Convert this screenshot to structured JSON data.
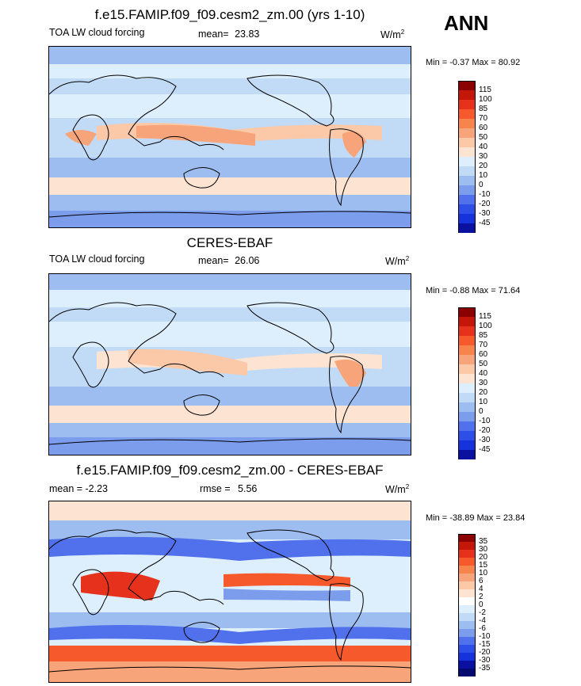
{
  "season": "ANN",
  "panels": [
    {
      "title": "f.e15.FAMIP.f09_f09.cesm2_zm.00 (yrs 1-10)",
      "left_label": "TOA LW cloud forcing",
      "stat_label": "mean=",
      "stat_value": "23.83",
      "units": "W/m",
      "units_sup": "2",
      "minmax": "Min =  -0.37 Max =  80.92",
      "colorbar": {
        "labels": [
          "115",
          "100",
          "85",
          "70",
          "60",
          "50",
          "40",
          "30",
          "20",
          "10",
          "0",
          "-10",
          "-20",
          "-30",
          "-45"
        ],
        "colors": [
          "#8b0000",
          "#c4170a",
          "#e6321d",
          "#f65a2c",
          "#f7844d",
          "#f8a47a",
          "#fbc8a8",
          "#fde3d1",
          "#ddeefc",
          "#c1dbf6",
          "#9dbdf0",
          "#7c9cec",
          "#5070ec",
          "#2e4ee8",
          "#1532dc",
          "#0a10a0"
        ]
      }
    },
    {
      "title": "CERES-EBAF",
      "left_label": "TOA LW cloud forcing",
      "stat_label": "mean=",
      "stat_value": "26.06",
      "units": "W/m",
      "units_sup": "2",
      "minmax": "Min =  -0.88 Max =  71.64",
      "colorbar": {
        "labels": [
          "115",
          "100",
          "85",
          "70",
          "60",
          "50",
          "40",
          "30",
          "20",
          "10",
          "0",
          "-10",
          "-20",
          "-30",
          "-45"
        ],
        "colors": [
          "#8b0000",
          "#c4170a",
          "#e6321d",
          "#f65a2c",
          "#f7844d",
          "#f8a47a",
          "#fbc8a8",
          "#fde3d1",
          "#ddeefc",
          "#c1dbf6",
          "#9dbdf0",
          "#7c9cec",
          "#5070ec",
          "#2e4ee8",
          "#1532dc",
          "#0a10a0"
        ]
      }
    },
    {
      "title": "f.e15.FAMIP.f09_f09.cesm2_zm.00 - CERES-EBAF",
      "left_label": "mean =  -2.23",
      "stat_label": "rmse =",
      "stat_value": "5.56",
      "units": "W/m",
      "units_sup": "2",
      "minmax": "Min = -38.89 Max =  23.84",
      "colorbar": {
        "labels": [
          "35",
          "30",
          "20",
          "15",
          "10",
          "6",
          "4",
          "2",
          "0",
          "-2",
          "-4",
          "-6",
          "-10",
          "-15",
          "-20",
          "-30",
          "-35"
        ],
        "colors": [
          "#8b0000",
          "#c4170a",
          "#e6321d",
          "#f65a2c",
          "#f7844d",
          "#f8a47a",
          "#fbc8a8",
          "#fde3d1",
          "#ffffff",
          "#ddeefc",
          "#c1dbf6",
          "#9dbdf0",
          "#7c9cec",
          "#5070ec",
          "#2e4ee8",
          "#1532dc",
          "#0a10a0",
          "#050a70"
        ]
      }
    }
  ]
}
